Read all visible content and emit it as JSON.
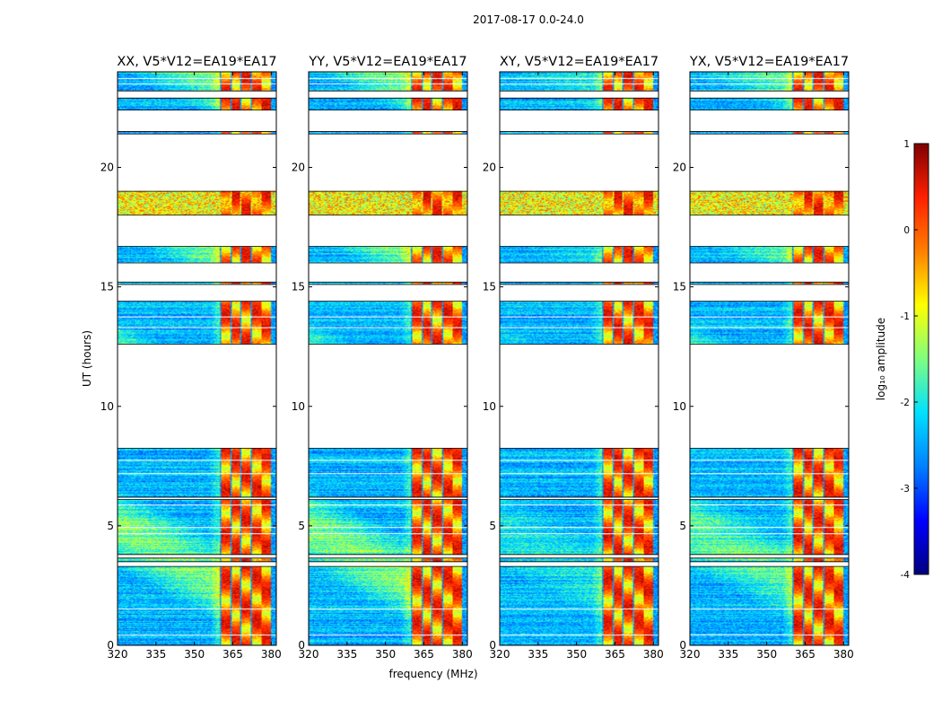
{
  "figure_title": "2017-08-17 0.0-24.0",
  "colormap": [
    "#00007f",
    "#0000ff",
    "#0080ff",
    "#00e0ff",
    "#7fff7f",
    "#ffff00",
    "#ff8000",
    "#ff2000",
    "#7f0000"
  ],
  "chart_data": [
    {
      "type": "heatmap",
      "title": "XX, V5*V12=EA19*EA17",
      "xlabel": "",
      "ylabel": "UT (hours)",
      "xlim": [
        320,
        382
      ],
      "ylim": [
        0,
        24
      ],
      "x_ticks": [
        320,
        335,
        350,
        365,
        380
      ],
      "y_ticks": [
        0,
        5,
        10,
        15,
        20
      ],
      "strong_band_mhz": [
        360,
        380
      ],
      "left_haze": 1
    },
    {
      "type": "heatmap",
      "title": "YY, V5*V12=EA19*EA17",
      "xlabel": "frequency (MHz)",
      "ylabel": "",
      "xlim": [
        320,
        382
      ],
      "ylim": [
        0,
        24
      ],
      "x_ticks": [
        320,
        335,
        350,
        365,
        380
      ],
      "y_ticks": [
        0,
        5,
        10,
        15,
        20
      ],
      "strong_band_mhz": [
        360,
        380
      ],
      "left_haze": 1
    },
    {
      "type": "heatmap",
      "title": "XY, V5*V12=EA19*EA17",
      "xlabel": "",
      "ylabel": "",
      "xlim": [
        320,
        382
      ],
      "ylim": [
        0,
        24
      ],
      "x_ticks": [
        320,
        335,
        350,
        365,
        380
      ],
      "y_ticks": [
        0,
        5,
        10,
        15,
        20
      ],
      "strong_band_mhz": [
        360,
        380
      ],
      "left_haze": 0.4
    },
    {
      "type": "heatmap",
      "title": "YX, V5*V12=EA19*EA17",
      "xlabel": "",
      "ylabel": "",
      "xlim": [
        320,
        382
      ],
      "ylim": [
        0,
        24
      ],
      "x_ticks": [
        320,
        335,
        350,
        365,
        380
      ],
      "y_ticks": [
        0,
        5,
        10,
        15,
        20
      ],
      "strong_band_mhz": [
        360,
        380
      ],
      "left_haze": 0.8
    }
  ],
  "data_segments_ut": [
    [
      0.0,
      3.3
    ],
    [
      3.5,
      3.65
    ],
    [
      3.8,
      6.1
    ],
    [
      6.2,
      8.25
    ],
    [
      12.6,
      14.4
    ],
    [
      15.1,
      15.2
    ],
    [
      16.0,
      16.7
    ],
    [
      18.0,
      19.0
    ],
    [
      21.4,
      21.5
    ],
    [
      22.4,
      22.9
    ],
    [
      23.2,
      24.0
    ]
  ],
  "dropout_lines_ut": [
    0.45,
    1.55,
    4.7,
    4.95,
    5.9,
    7.2,
    7.75,
    13.3,
    13.75,
    23.5,
    23.75
  ],
  "colorbar": {
    "label": "log₁₀ amplitude",
    "range": [
      -4,
      1
    ],
    "ticks": [
      1,
      0,
      -1,
      -2,
      -3,
      -4
    ]
  }
}
